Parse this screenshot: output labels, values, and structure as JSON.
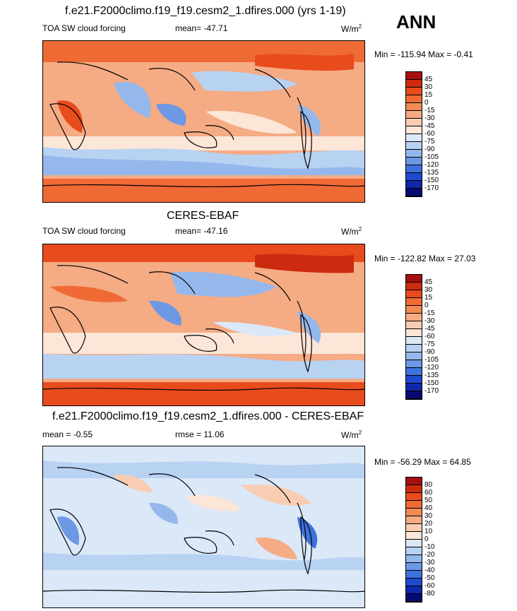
{
  "season": "ANN",
  "panels": [
    {
      "title": "f.e21.F2000climo.f19_f19.cesm2_1.dfires.000 (yrs 1-19)",
      "left_label": "TOA SW cloud forcing",
      "center_label": "mean= -47.71",
      "units": "W/m",
      "units_sup": "2",
      "minmax": "Min = -115.94 Max =  -0.41",
      "colorbar_labels": [
        "45",
        "30",
        "15",
        "0",
        "-15",
        "-30",
        "-45",
        "-60",
        "-75",
        "-90",
        "-105",
        "-120",
        "-135",
        "-150",
        "-170"
      ],
      "colorbar_colors": [
        "#a50f0f",
        "#cc2b10",
        "#e84b1c",
        "#ef6a35",
        "#f28a55",
        "#f5ab83",
        "#f9cdb4",
        "#fbe6d8",
        "#dbe8f8",
        "#b8d2f2",
        "#95b8ec",
        "#6c98e4",
        "#3f72dc",
        "#1f49cf",
        "#0f27a8",
        "#070a72"
      ]
    },
    {
      "title": "CERES-EBAF",
      "left_label": "TOA SW cloud forcing",
      "center_label": "mean= -47.16",
      "units": "W/m",
      "units_sup": "2",
      "minmax": "Min = -122.82 Max =  27.03",
      "colorbar_labels": [
        "45",
        "30",
        "15",
        "0",
        "-15",
        "-30",
        "-45",
        "-60",
        "-75",
        "-90",
        "-105",
        "-120",
        "-135",
        "-150",
        "-170"
      ],
      "colorbar_colors": [
        "#a50f0f",
        "#cc2b10",
        "#e84b1c",
        "#ef6a35",
        "#f28a55",
        "#f5ab83",
        "#f9cdb4",
        "#fbe6d8",
        "#dbe8f8",
        "#b8d2f2",
        "#95b8ec",
        "#6c98e4",
        "#3f72dc",
        "#1f49cf",
        "#0f27a8",
        "#070a72"
      ]
    },
    {
      "title": "f.e21.F2000climo.f19_f19.cesm2_1.dfires.000 - CERES-EBAF",
      "left_label": "mean =  -0.55",
      "center_label": "rmse =  11.06",
      "units": "W/m",
      "units_sup": "2",
      "minmax": "Min = -56.29 Max =  64.85",
      "colorbar_labels": [
        "80",
        "60",
        "50",
        "40",
        "30",
        "20",
        "10",
        "0",
        "-10",
        "-20",
        "-30",
        "-40",
        "-50",
        "-60",
        "-80"
      ],
      "colorbar_colors": [
        "#a50f0f",
        "#cc2b10",
        "#e84b1c",
        "#ef6a35",
        "#f28a55",
        "#f5ab83",
        "#f9cdb4",
        "#fbe6d8",
        "#dbe8f8",
        "#b8d2f2",
        "#95b8ec",
        "#6c98e4",
        "#3f72dc",
        "#1f49cf",
        "#0f27a8",
        "#070a72"
      ]
    }
  ],
  "chart_data": [
    {
      "type": "heatmap",
      "title": "f.e21.F2000climo.f19_f19.cesm2_1.dfires.000 (yrs 1-19)",
      "variable": "TOA SW cloud forcing",
      "mean": -47.71,
      "min": -115.94,
      "max": -0.41,
      "units": "W/m2",
      "levels": [
        45,
        30,
        15,
        0,
        -15,
        -30,
        -45,
        -60,
        -75,
        -90,
        -105,
        -120,
        -135,
        -150,
        -170
      ]
    },
    {
      "type": "heatmap",
      "title": "CERES-EBAF",
      "variable": "TOA SW cloud forcing",
      "mean": -47.16,
      "min": -122.82,
      "max": 27.03,
      "units": "W/m2",
      "levels": [
        45,
        30,
        15,
        0,
        -15,
        -30,
        -45,
        -60,
        -75,
        -90,
        -105,
        -120,
        -135,
        -150,
        -170
      ]
    },
    {
      "type": "heatmap",
      "title": "f.e21.F2000climo.f19_f19.cesm2_1.dfires.000 - CERES-EBAF",
      "mean": -0.55,
      "rmse": 11.06,
      "min": -56.29,
      "max": 64.85,
      "units": "W/m2",
      "levels": [
        80,
        60,
        50,
        40,
        30,
        20,
        10,
        0,
        -10,
        -20,
        -30,
        -40,
        -50,
        -60,
        -80
      ]
    }
  ]
}
